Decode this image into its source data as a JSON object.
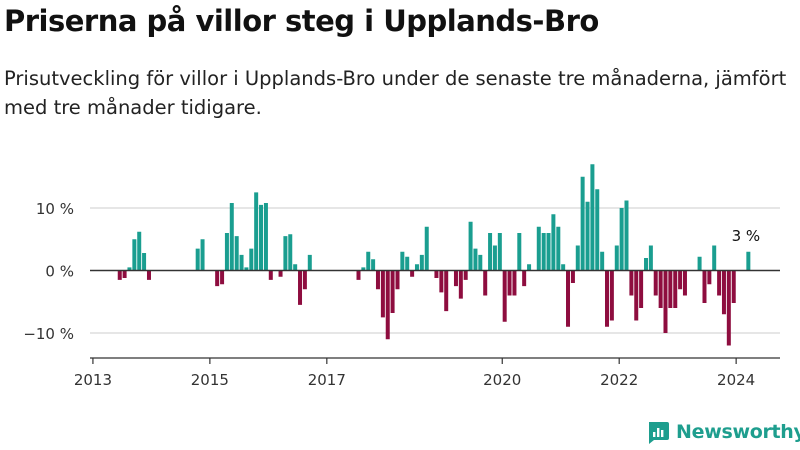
{
  "title": "Priserna på villor steg i Upplands-Bro",
  "subtitle": "Prisutveckling för villor i Upplands-Bro under de senaste tre månaderna, jämfört med tre månader tidigare.",
  "brand": {
    "name": "Newsworthy"
  },
  "colors": {
    "positive": "#1a9e90",
    "negative": "#8e0d3f",
    "grid": "#cccccc",
    "axis": "#333333",
    "brand": "#1e9e8e"
  },
  "chart_data": {
    "type": "bar",
    "xlabel": "",
    "ylabel": "",
    "xlim": [
      2012.95,
      2024.75
    ],
    "ylim": [
      -13,
      20
    ],
    "grid": true,
    "x_ticks": [
      {
        "value": 2013,
        "label": "2013"
      },
      {
        "value": 2015,
        "label": "2015"
      },
      {
        "value": 2017,
        "label": "2017"
      },
      {
        "value": 2020,
        "label": "2020"
      },
      {
        "value": 2022,
        "label": "2022"
      },
      {
        "value": 2024,
        "label": "2024"
      }
    ],
    "y_ticks": [
      {
        "value": 10,
        "label": "10 %"
      },
      {
        "value": 0,
        "label": "0 %"
      },
      {
        "value": -10,
        "label": "−10 %"
      }
    ],
    "annotation": {
      "x": 2024.125,
      "y": 3,
      "label": "3 %"
    },
    "x": [
      2013.0,
      2013.083,
      2013.167,
      2013.25,
      2013.333,
      2013.417,
      2013.5,
      2013.583,
      2013.667,
      2013.75,
      2013.833,
      2013.917,
      2014.0,
      2014.083,
      2014.167,
      2014.25,
      2014.333,
      2014.417,
      2014.5,
      2014.583,
      2014.667,
      2014.75,
      2014.833,
      2014.917,
      2015.0,
      2015.083,
      2015.167,
      2015.25,
      2015.333,
      2015.417,
      2015.5,
      2015.583,
      2015.667,
      2015.75,
      2015.833,
      2015.917,
      2016.0,
      2016.083,
      2016.167,
      2016.25,
      2016.333,
      2016.417,
      2016.5,
      2016.583,
      2016.667,
      2016.75,
      2016.833,
      2016.917,
      2017.0,
      2017.083,
      2017.167,
      2017.25,
      2017.333,
      2017.417,
      2017.5,
      2017.583,
      2017.667,
      2017.75,
      2017.833,
      2017.917,
      2018.0,
      2018.083,
      2018.167,
      2018.25,
      2018.333,
      2018.417,
      2018.5,
      2018.583,
      2018.667,
      2018.75,
      2018.833,
      2018.917,
      2019.0,
      2019.083,
      2019.167,
      2019.25,
      2019.333,
      2019.417,
      2019.5,
      2019.583,
      2019.667,
      2019.75,
      2019.833,
      2019.917,
      2020.0,
      2020.083,
      2020.167,
      2020.25,
      2020.333,
      2020.417,
      2020.5,
      2020.583,
      2020.667,
      2020.75,
      2020.833,
      2020.917,
      2021.0,
      2021.083,
      2021.167,
      2021.25,
      2021.333,
      2021.417,
      2021.5,
      2021.583,
      2021.667,
      2021.75,
      2021.833,
      2021.917,
      2022.0,
      2022.083,
      2022.167,
      2022.25,
      2022.333,
      2022.417,
      2022.5,
      2022.583,
      2022.667,
      2022.75,
      2022.833,
      2022.917,
      2023.0,
      2023.083,
      2023.167,
      2023.25,
      2023.333,
      2023.417,
      2023.5,
      2023.583,
      2023.667,
      2023.75,
      2023.833,
      2023.917,
      2024.0,
      2024.083,
      2024.167
    ],
    "values": [
      0,
      0,
      0,
      0,
      0,
      -1.5,
      -1.2,
      0.5,
      5,
      6.2,
      2.8,
      -1.5,
      0,
      0,
      0,
      0,
      0,
      0,
      0,
      0,
      0,
      3.5,
      5,
      0,
      0,
      -2.5,
      -2.2,
      6,
      10.8,
      5.5,
      2.5,
      0.5,
      3.5,
      12.5,
      10.5,
      10.8,
      -1.5,
      0,
      -1,
      5.5,
      5.8,
      1,
      -5.5,
      -3,
      2.5,
      0,
      0,
      0,
      0,
      0,
      0,
      0,
      0,
      0,
      -1.5,
      0.5,
      3,
      1.8,
      -3,
      -7.5,
      -11,
      -6.8,
      -3,
      3,
      2.2,
      -1,
      1,
      2.5,
      7,
      0,
      -1.2,
      -3.5,
      -6.5,
      0,
      -2.5,
      -4.5,
      -1.5,
      7.8,
      3.5,
      2.5,
      -4,
      6,
      4,
      6,
      -8.2,
      -4,
      -4,
      6,
      -2.5,
      1,
      0,
      7,
      6,
      6,
      9,
      7,
      1,
      -9,
      -2,
      4,
      15,
      11,
      17,
      13,
      3,
      -9,
      -8,
      4,
      10,
      11.2,
      -4,
      -8,
      -6,
      2,
      4,
      -4,
      -6,
      -10,
      -6,
      -6,
      -3,
      -4,
      0,
      0,
      2.2,
      -5.2,
      -2.2,
      4,
      -4,
      -7,
      -12,
      -5.2,
      0,
      0,
      3
    ]
  }
}
